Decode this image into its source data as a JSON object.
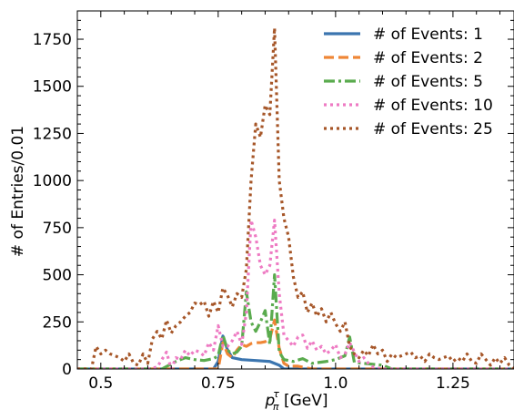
{
  "chart_data": {
    "type": "line",
    "xlabel": "p_π^τ [GeV]",
    "xlabel_main": "p",
    "xlabel_sub": "π",
    "xlabel_sup": "τ",
    "xlabel_unit": " [GeV]",
    "ylabel": "# of Entries/0.01",
    "xlim": [
      0.45,
      1.38
    ],
    "ylim": [
      0,
      1900
    ],
    "x_ticks": [
      0.5,
      0.75,
      1.0,
      1.25
    ],
    "x_tick_labels": [
      "0.5",
      "0.75",
      "1.0",
      "1.25"
    ],
    "y_ticks": [
      0,
      250,
      500,
      750,
      1000,
      1250,
      1500,
      1750
    ],
    "y_tick_labels": [
      "0",
      "250",
      "500",
      "750",
      "1000",
      "1250",
      "1500",
      "1750"
    ],
    "grid": false,
    "legend_position": "top-right",
    "series": [
      {
        "name": "# of Events: 1",
        "color": "#3b75af",
        "style": "solid",
        "points": [
          [
            0.45,
            0
          ],
          [
            0.7,
            0
          ],
          [
            0.74,
            0
          ],
          [
            0.75,
            40
          ],
          [
            0.76,
            175
          ],
          [
            0.77,
            100
          ],
          [
            0.78,
            60
          ],
          [
            0.8,
            50
          ],
          [
            0.83,
            45
          ],
          [
            0.86,
            40
          ],
          [
            0.88,
            20
          ],
          [
            0.89,
            0
          ],
          [
            1.38,
            0
          ]
        ]
      },
      {
        "name": "# of Events: 2",
        "color": "#ef8636",
        "style": "dashed",
        "points": [
          [
            0.45,
            0
          ],
          [
            0.75,
            0
          ],
          [
            0.76,
            140
          ],
          [
            0.77,
            80
          ],
          [
            0.78,
            60
          ],
          [
            0.79,
            100
          ],
          [
            0.8,
            130
          ],
          [
            0.81,
            120
          ],
          [
            0.82,
            135
          ],
          [
            0.83,
            140
          ],
          [
            0.84,
            140
          ],
          [
            0.85,
            145
          ],
          [
            0.86,
            160
          ],
          [
            0.87,
            260
          ],
          [
            0.88,
            110
          ],
          [
            0.89,
            30
          ],
          [
            0.9,
            15
          ],
          [
            0.92,
            15
          ],
          [
            0.95,
            0
          ],
          [
            1.38,
            0
          ]
        ]
      },
      {
        "name": "# of Events: 5",
        "color": "#5aab4e",
        "style": "dashdot",
        "points": [
          [
            0.45,
            0
          ],
          [
            0.63,
            0
          ],
          [
            0.66,
            40
          ],
          [
            0.68,
            60
          ],
          [
            0.7,
            50
          ],
          [
            0.72,
            45
          ],
          [
            0.74,
            55
          ],
          [
            0.75,
            70
          ],
          [
            0.76,
            180
          ],
          [
            0.77,
            100
          ],
          [
            0.78,
            80
          ],
          [
            0.79,
            90
          ],
          [
            0.8,
            120
          ],
          [
            0.81,
            410
          ],
          [
            0.82,
            250
          ],
          [
            0.83,
            200
          ],
          [
            0.84,
            250
          ],
          [
            0.85,
            310
          ],
          [
            0.86,
            130
          ],
          [
            0.87,
            500
          ],
          [
            0.88,
            90
          ],
          [
            0.89,
            50
          ],
          [
            0.91,
            40
          ],
          [
            0.93,
            55
          ],
          [
            0.95,
            30
          ],
          [
            0.98,
            40
          ],
          [
            1.0,
            50
          ],
          [
            1.02,
            70
          ],
          [
            1.03,
            170
          ],
          [
            1.04,
            35
          ],
          [
            1.06,
            30
          ],
          [
            1.08,
            25
          ],
          [
            1.1,
            20
          ],
          [
            1.12,
            0
          ],
          [
            1.38,
            0
          ]
        ]
      },
      {
        "name": "# of Events: 10",
        "color": "#ee7bc3",
        "style": "dotted",
        "points": [
          [
            0.45,
            0
          ],
          [
            0.6,
            0
          ],
          [
            0.62,
            10
          ],
          [
            0.64,
            90
          ],
          [
            0.65,
            0
          ],
          [
            0.66,
            60
          ],
          [
            0.67,
            50
          ],
          [
            0.68,
            100
          ],
          [
            0.69,
            70
          ],
          [
            0.7,
            100
          ],
          [
            0.71,
            90
          ],
          [
            0.72,
            70
          ],
          [
            0.73,
            140
          ],
          [
            0.74,
            100
          ],
          [
            0.75,
            230
          ],
          [
            0.76,
            120
          ],
          [
            0.77,
            120
          ],
          [
            0.78,
            150
          ],
          [
            0.79,
            200
          ],
          [
            0.8,
            130
          ],
          [
            0.81,
            300
          ],
          [
            0.82,
            790
          ],
          [
            0.83,
            700
          ],
          [
            0.84,
            550
          ],
          [
            0.85,
            500
          ],
          [
            0.86,
            550
          ],
          [
            0.87,
            790
          ],
          [
            0.88,
            400
          ],
          [
            0.89,
            180
          ],
          [
            0.9,
            150
          ],
          [
            0.91,
            120
          ],
          [
            0.92,
            170
          ],
          [
            0.93,
            180
          ],
          [
            0.94,
            110
          ],
          [
            0.95,
            150
          ],
          [
            0.96,
            100
          ],
          [
            0.97,
            120
          ],
          [
            0.98,
            80
          ],
          [
            0.99,
            100
          ],
          [
            1.0,
            130
          ],
          [
            1.01,
            60
          ],
          [
            1.02,
            80
          ],
          [
            1.03,
            140
          ],
          [
            1.04,
            90
          ],
          [
            1.05,
            40
          ],
          [
            1.06,
            60
          ],
          [
            1.07,
            30
          ],
          [
            1.08,
            10
          ],
          [
            1.1,
            0
          ],
          [
            1.38,
            0
          ]
        ]
      },
      {
        "name": "# of Events: 25",
        "color": "#a65628",
        "style": "dotted",
        "points": [
          [
            0.45,
            0
          ],
          [
            0.48,
            0
          ],
          [
            0.49,
            120
          ],
          [
            0.5,
            80
          ],
          [
            0.51,
            100
          ],
          [
            0.52,
            80
          ],
          [
            0.53,
            70
          ],
          [
            0.54,
            60
          ],
          [
            0.55,
            40
          ],
          [
            0.56,
            80
          ],
          [
            0.57,
            30
          ],
          [
            0.58,
            20
          ],
          [
            0.59,
            80
          ],
          [
            0.6,
            30
          ],
          [
            0.61,
            160
          ],
          [
            0.62,
            200
          ],
          [
            0.63,
            160
          ],
          [
            0.64,
            260
          ],
          [
            0.65,
            190
          ],
          [
            0.66,
            230
          ],
          [
            0.67,
            250
          ],
          [
            0.68,
            280
          ],
          [
            0.69,
            300
          ],
          [
            0.7,
            350
          ],
          [
            0.71,
            340
          ],
          [
            0.72,
            360
          ],
          [
            0.73,
            280
          ],
          [
            0.74,
            360
          ],
          [
            0.75,
            300
          ],
          [
            0.76,
            430
          ],
          [
            0.77,
            390
          ],
          [
            0.78,
            330
          ],
          [
            0.79,
            400
          ],
          [
            0.8,
            380
          ],
          [
            0.81,
            530
          ],
          [
            0.82,
            1000
          ],
          [
            0.83,
            1300
          ],
          [
            0.84,
            1230
          ],
          [
            0.85,
            1400
          ],
          [
            0.86,
            1350
          ],
          [
            0.87,
            1810
          ],
          [
            0.88,
            1000
          ],
          [
            0.89,
            800
          ],
          [
            0.9,
            700
          ],
          [
            0.91,
            490
          ],
          [
            0.92,
            380
          ],
          [
            0.93,
            410
          ],
          [
            0.94,
            300
          ],
          [
            0.95,
            350
          ],
          [
            0.96,
            280
          ],
          [
            0.97,
            320
          ],
          [
            0.98,
            250
          ],
          [
            0.99,
            300
          ],
          [
            1.0,
            240
          ],
          [
            1.01,
            200
          ],
          [
            1.02,
            250
          ],
          [
            1.03,
            120
          ],
          [
            1.04,
            80
          ],
          [
            1.05,
            60
          ],
          [
            1.06,
            100
          ],
          [
            1.07,
            70
          ],
          [
            1.08,
            130
          ],
          [
            1.09,
            80
          ],
          [
            1.1,
            100
          ],
          [
            1.11,
            40
          ],
          [
            1.12,
            80
          ],
          [
            1.13,
            60
          ],
          [
            1.14,
            70
          ],
          [
            1.15,
            80
          ],
          [
            1.16,
            90
          ],
          [
            1.17,
            60
          ],
          [
            1.18,
            70
          ],
          [
            1.19,
            40
          ],
          [
            1.2,
            80
          ],
          [
            1.21,
            60
          ],
          [
            1.22,
            50
          ],
          [
            1.23,
            60
          ],
          [
            1.24,
            70
          ],
          [
            1.25,
            40
          ],
          [
            1.26,
            60
          ],
          [
            1.27,
            40
          ],
          [
            1.28,
            80
          ],
          [
            1.29,
            40
          ],
          [
            1.3,
            30
          ],
          [
            1.31,
            80
          ],
          [
            1.32,
            50
          ],
          [
            1.33,
            20
          ],
          [
            1.34,
            60
          ],
          [
            1.35,
            30
          ],
          [
            1.36,
            60
          ],
          [
            1.37,
            20
          ],
          [
            1.38,
            0
          ]
        ]
      }
    ]
  }
}
